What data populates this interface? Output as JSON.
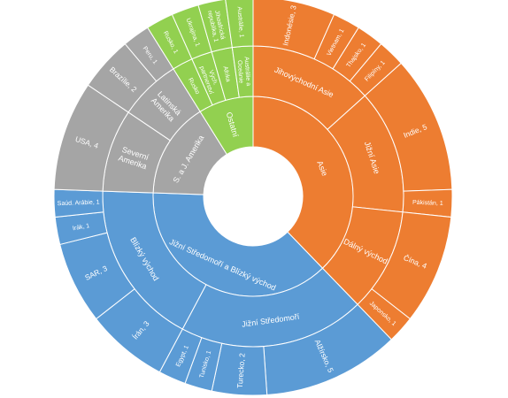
{
  "chart_data": {
    "type": "sunburst",
    "colors": {
      "Asie": "#ED7D31",
      "Jižní Středomoří a Blízký východ": "#5B9BD5",
      "S. a J. Amerika": "#A5A5A5",
      "Ostatní": "#92D050"
    },
    "segment_border": "#ffffff",
    "tree": [
      {
        "name": "Asie",
        "children": [
          {
            "name": "Jihovýchodní Asie",
            "children": [
              {
                "name": "Indonésie",
                "value": 3,
                "label": "Indonésie, 3"
              },
              {
                "name": "Vietnam",
                "value": 1,
                "label": "Vietnam, 1"
              },
              {
                "name": "Thajsko",
                "value": 1,
                "label": "Thajsko, 1"
              },
              {
                "name": "Filipíny",
                "value": 1,
                "label": "Filipíny, 1"
              }
            ]
          },
          {
            "name": "Jižní Asie",
            "children": [
              {
                "name": "Indie",
                "value": 5,
                "label": "Indie, 5"
              },
              {
                "name": "Pákistán",
                "value": 1,
                "label": "Pákistán, 1"
              }
            ]
          },
          {
            "name": "Dálný východ",
            "children": [
              {
                "name": "Čína",
                "value": 4,
                "label": "Čína, 4"
              },
              {
                "name": "Japonsko",
                "value": 1,
                "label": "Japonsko, 1"
              }
            ]
          }
        ]
      },
      {
        "name": "Jižní Středomoří a Blízký východ",
        "children": [
          {
            "name": "Jižní Středomoří",
            "children": [
              {
                "name": "Alžírsko",
                "value": 5,
                "label": "Alžírsko, 5"
              },
              {
                "name": "Turecko",
                "value": 2,
                "label": "Turecko, 2"
              },
              {
                "name": "Tunisko",
                "value": 1,
                "label": "Tunisko, 1"
              },
              {
                "name": "Egypt",
                "value": 1,
                "label": "Egypt, 1"
              }
            ]
          },
          {
            "name": "Blízký východ",
            "children": [
              {
                "name": "Írán",
                "value": 3,
                "label": "Írán, 3"
              },
              {
                "name": "SAR",
                "value": 3,
                "label": "SAR, 3"
              },
              {
                "name": "Irák",
                "value": 1,
                "label": "Irák, 1"
              },
              {
                "name": "Saúd. Arábie",
                "value": 1,
                "label": "Saúd. Arábie, 1"
              }
            ]
          }
        ]
      },
      {
        "name": "S. a J. Amerika",
        "children": [
          {
            "name": "Severní Amerika",
            "children": [
              {
                "name": "USA",
                "value": 4,
                "label": "USA, 4"
              }
            ]
          },
          {
            "name": "Latinská Amerika",
            "children": [
              {
                "name": "Brazílie",
                "value": 2,
                "label": "Brazílie, 2"
              },
              {
                "name": "Peru",
                "value": 1,
                "label": "Peru, 1"
              }
            ]
          }
        ]
      },
      {
        "name": "Ostatní",
        "children": [
          {
            "name": "Rusko",
            "children": [
              {
                "name": "Rusko",
                "value": 1,
                "label": "Rusko, 1"
              }
            ]
          },
          {
            "name": "Vých. partnerství",
            "children": [
              {
                "name": "Ukrajina",
                "value": 1,
                "label": "Ukrajina, 1"
              }
            ]
          },
          {
            "name": "Afrika",
            "children": [
              {
                "name": "Jihoafrická republika",
                "value": 1,
                "label": "Jihoafrická republika, 1"
              }
            ]
          },
          {
            "name": "Austrálie a Oceánie",
            "children": [
              {
                "name": "Austrálie",
                "value": 1,
                "label": "Austrálie, 1"
              }
            ]
          }
        ]
      }
    ]
  }
}
